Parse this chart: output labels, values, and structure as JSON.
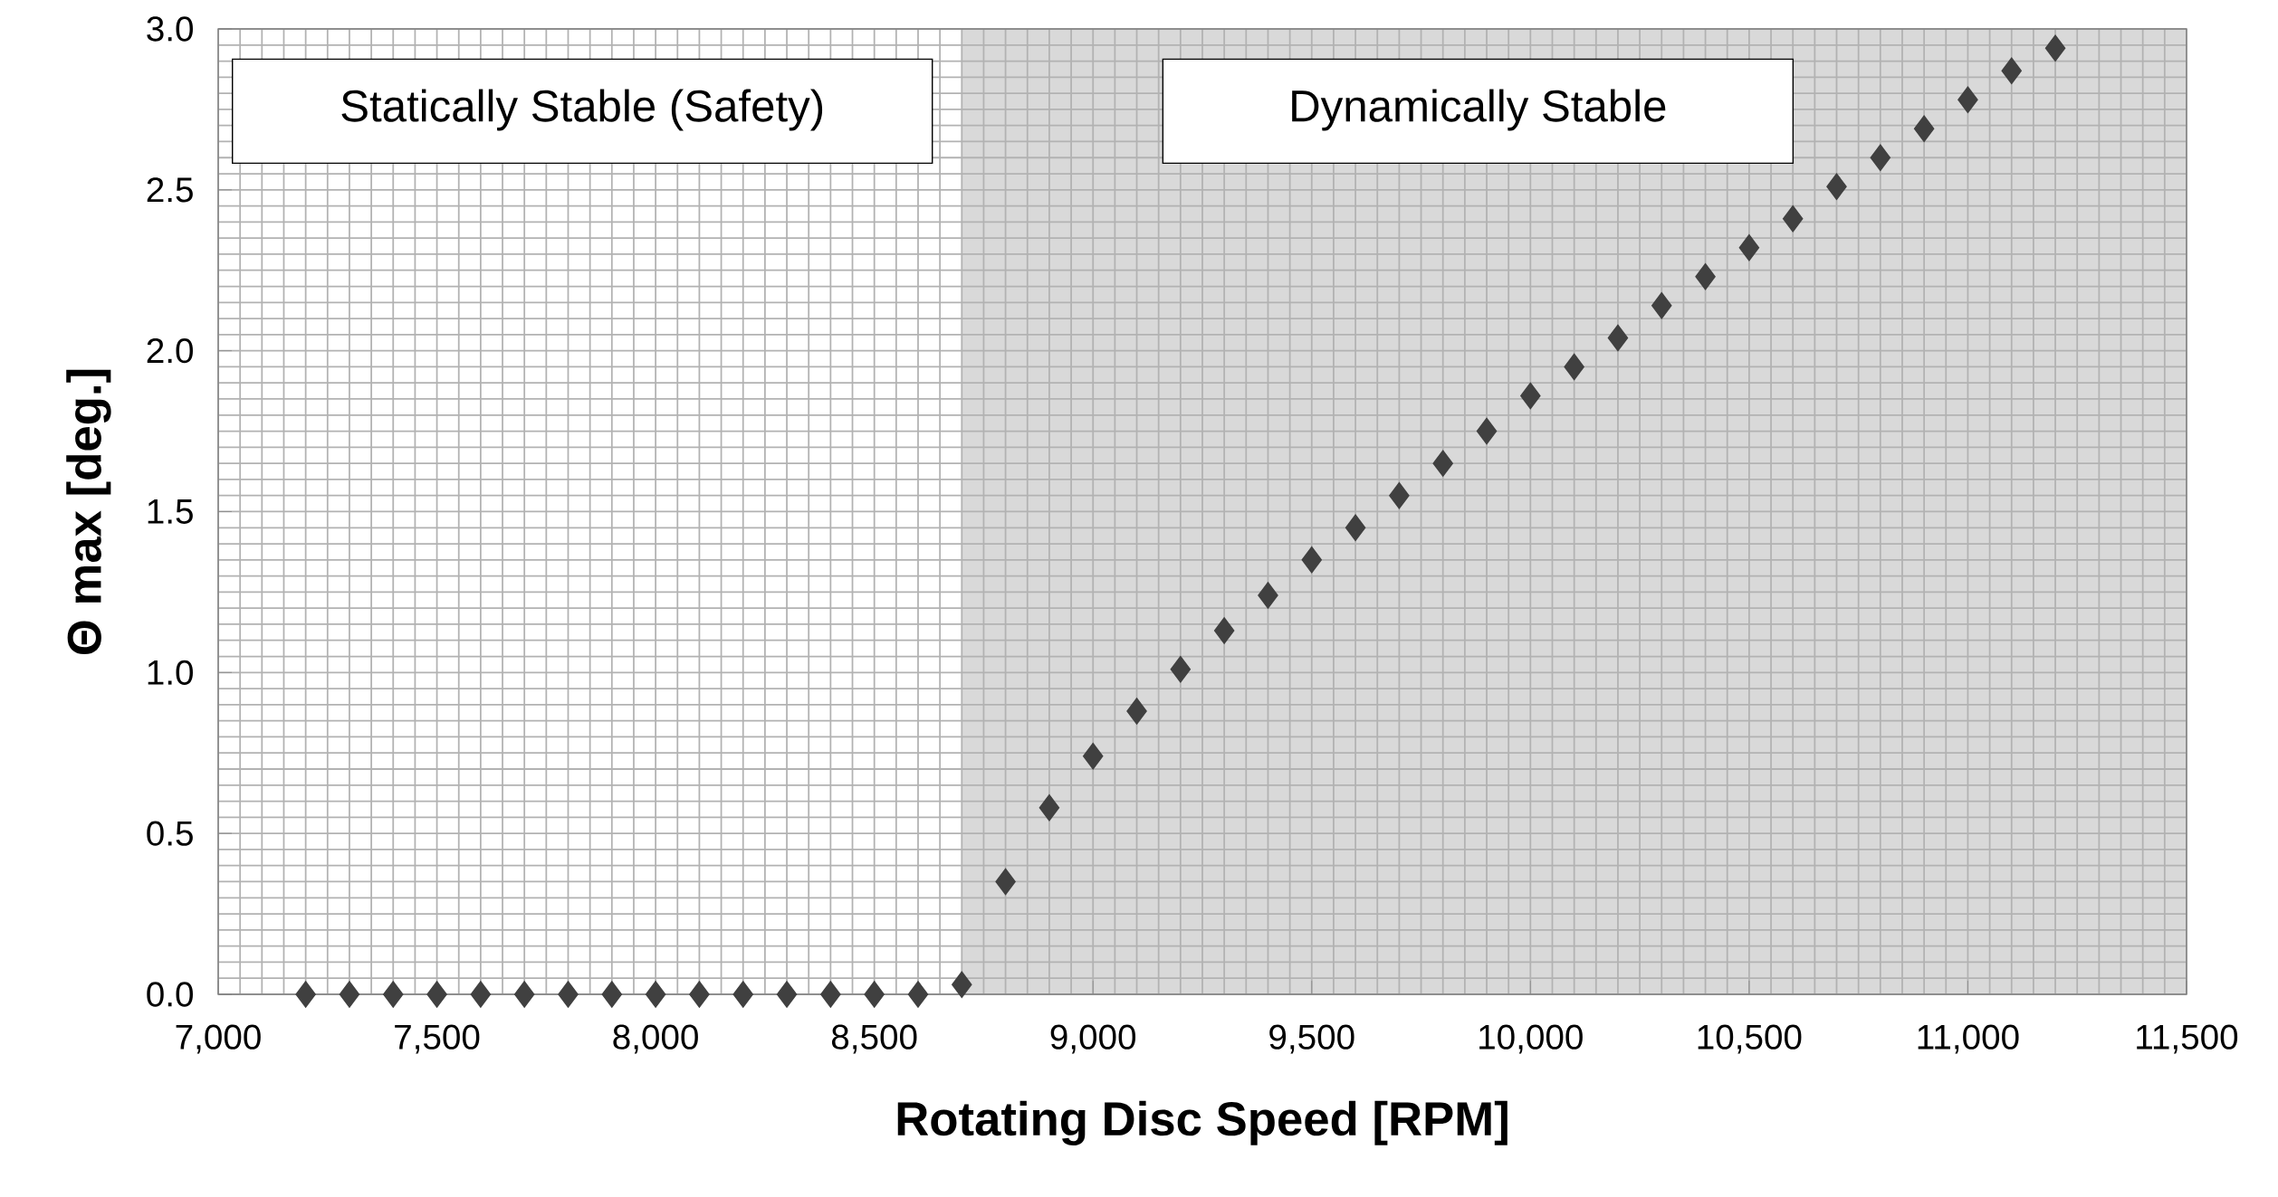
{
  "chart_data": {
    "type": "scatter",
    "xlabel": "Rotating Disc Speed  [RPM]",
    "ylabel": "Θ max  [deg.]",
    "x": [
      7200,
      7300,
      7400,
      7500,
      7600,
      7700,
      7800,
      7900,
      8000,
      8100,
      8200,
      8300,
      8400,
      8500,
      8600,
      8700,
      8800,
      8900,
      9000,
      9100,
      9200,
      9300,
      9400,
      9500,
      9600,
      9700,
      9800,
      9900,
      10000,
      10100,
      10200,
      10300,
      10400,
      10500,
      10600,
      10700,
      10800,
      10900,
      11000,
      11100,
      11200
    ],
    "series": [
      {
        "color": "#404040",
        "values": [
          0,
          0,
          0,
          0,
          0,
          0,
          0,
          0,
          0,
          0,
          0,
          0,
          0,
          0,
          0,
          0.03,
          0.35,
          0.58,
          0.74,
          0.88,
          1.01,
          1.13,
          1.24,
          1.35,
          1.45,
          1.55,
          1.65,
          1.75,
          1.86,
          1.95,
          2.04,
          2.14,
          2.23,
          2.32,
          2.41,
          2.51,
          2.6,
          2.69,
          2.78,
          2.87,
          2.94
        ]
      }
    ],
    "xlim": [
      7000,
      11500
    ],
    "xticks": [
      {
        "value": 7000,
        "label": "7,000"
      },
      {
        "value": 7500,
        "label": "7,500"
      },
      {
        "value": 8000,
        "label": "8,000"
      },
      {
        "value": 8500,
        "label": "8,500"
      },
      {
        "value": 9000,
        "label": "9,000"
      },
      {
        "value": 9500,
        "label": "9,500"
      },
      {
        "value": 10000,
        "label": "10,000"
      },
      {
        "value": 10500,
        "label": "10,500"
      },
      {
        "value": 11000,
        "label": "11,000"
      },
      {
        "value": 11500,
        "label": "11,500"
      }
    ],
    "ylim": [
      0,
      3
    ],
    "yticks": [
      {
        "value": 0,
        "label": "0.0"
      },
      {
        "value": 0.5,
        "label": "0.5"
      },
      {
        "value": 1,
        "label": "1.0"
      },
      {
        "value": 1.5,
        "label": "1.5"
      },
      {
        "value": 2,
        "label": "2.0"
      },
      {
        "value": 2.5,
        "label": "2.5"
      },
      {
        "value": 3,
        "label": "3.0"
      }
    ],
    "annotations": [
      "Statically Stable  (Safety)"
    ],
    "bands": [
      {
        "axis": "x",
        "from": 8700,
        "to": 11500,
        "label": "Dynamically Stable",
        "color": "#d9d9d9"
      }
    ],
    "grid": true,
    "marker": "diamond"
  }
}
